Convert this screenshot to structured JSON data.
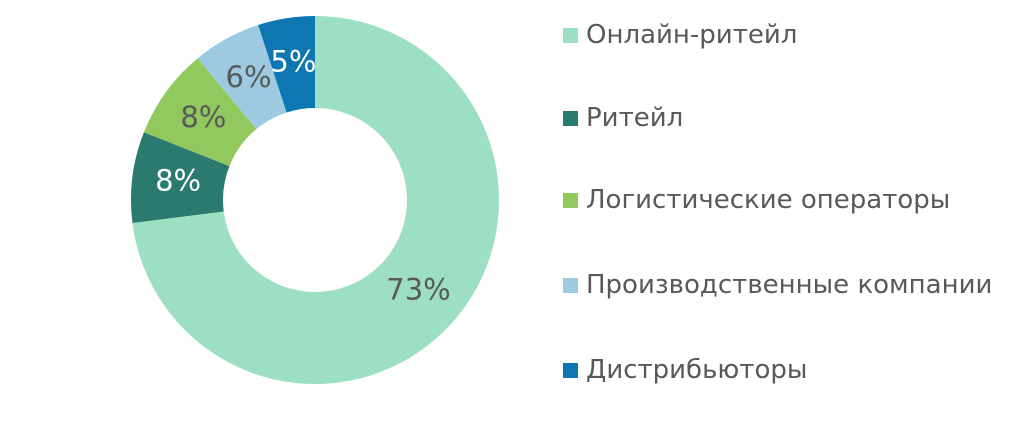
{
  "chart_data": {
    "type": "donut",
    "categories": [
      "Онлайн-ритейл",
      "Ритейл",
      "Логистические операторы",
      "Производственные компании",
      "Дистрибьюторы"
    ],
    "values": [
      73,
      8,
      8,
      6,
      5
    ],
    "value_labels": [
      "73%",
      "8%",
      "8%",
      "6%",
      "5%"
    ],
    "colors": [
      "#9ddfc3",
      "#2b7a6f",
      "#92c95f",
      "#9ecae1",
      "#0e76b0"
    ]
  }
}
